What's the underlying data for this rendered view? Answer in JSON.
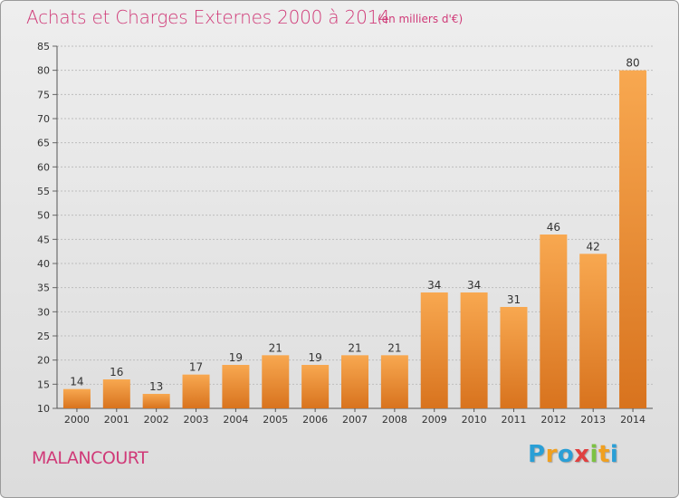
{
  "title": "Achats et Charges Externes 2000 à 2014",
  "subtitle": "(en milliers d'€)",
  "commune": "MALANCOURT",
  "logo": {
    "letters": [
      "P",
      "r",
      "o",
      "x",
      "i",
      "t",
      "i"
    ],
    "colors": [
      "#2a9fd6",
      "#f0a020",
      "#2a9fd6",
      "#e04040",
      "#7cc242",
      "#f0a020",
      "#2a9fd6"
    ]
  },
  "chart_data": {
    "type": "bar",
    "categories": [
      "2000",
      "2001",
      "2002",
      "2003",
      "2004",
      "2005",
      "2006",
      "2007",
      "2008",
      "2009",
      "2010",
      "2011",
      "2012",
      "2013",
      "2014"
    ],
    "values": [
      14,
      16,
      13,
      17,
      19,
      21,
      19,
      21,
      21,
      34,
      34,
      31,
      46,
      42,
      80
    ],
    "ylim": [
      10,
      85
    ],
    "yticks": [
      10,
      15,
      20,
      25,
      30,
      35,
      40,
      45,
      50,
      55,
      60,
      65,
      70,
      75,
      80,
      85
    ],
    "grid": true,
    "bar_color": "#f0963c"
  }
}
